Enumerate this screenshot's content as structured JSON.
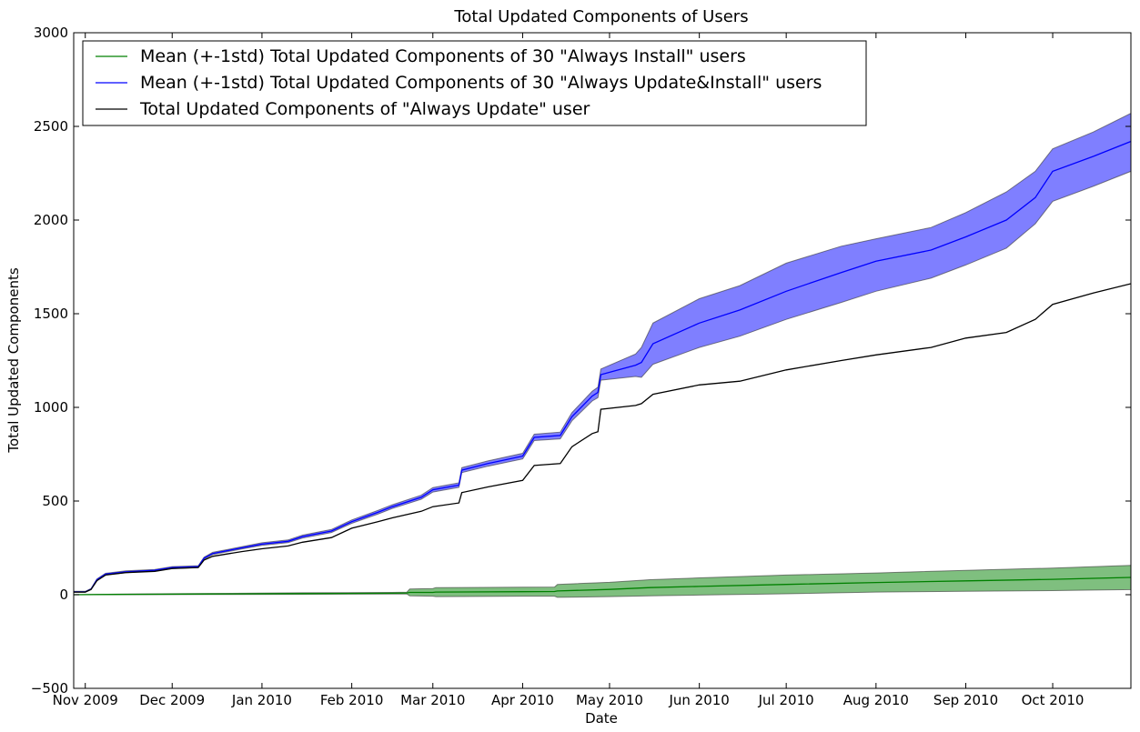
{
  "chart_data": {
    "type": "line",
    "title": "Total Updated Components of Users",
    "xlabel": "Date",
    "ylabel": "Total Updated Components",
    "xlim": [
      "2009-10-28",
      "2010-10-28"
    ],
    "ylim": [
      -500,
      3000
    ],
    "grid": false,
    "legend_position": "top-left",
    "x_ticks": [
      {
        "date": "2009-11-01",
        "label": "Nov 2009"
      },
      {
        "date": "2009-12-01",
        "label": "Dec 2009"
      },
      {
        "date": "2010-01-01",
        "label": "Jan 2010"
      },
      {
        "date": "2010-02-01",
        "label": "Feb 2010"
      },
      {
        "date": "2010-03-01",
        "label": "Mar 2010"
      },
      {
        "date": "2010-04-01",
        "label": "Apr 2010"
      },
      {
        "date": "2010-05-01",
        "label": "May 2010"
      },
      {
        "date": "2010-06-01",
        "label": "Jun 2010"
      },
      {
        "date": "2010-07-01",
        "label": "Jul 2010"
      },
      {
        "date": "2010-08-01",
        "label": "Aug 2010"
      },
      {
        "date": "2010-09-01",
        "label": "Sep 2010"
      },
      {
        "date": "2010-10-01",
        "label": "Oct 2010"
      }
    ],
    "y_ticks": [
      {
        "value": -500,
        "label": "−500"
      },
      {
        "value": 0,
        "label": "0"
      },
      {
        "value": 500,
        "label": "500"
      },
      {
        "value": 1000,
        "label": "1000"
      },
      {
        "value": 1500,
        "label": "1500"
      },
      {
        "value": 2000,
        "label": "2000"
      },
      {
        "value": 2500,
        "label": "2500"
      },
      {
        "value": 3000,
        "label": "3000"
      }
    ],
    "series": [
      {
        "name": "Mean (+-1std) Total Updated Components of 30 \"Always Install\" users",
        "color": "#008000",
        "band_color": "#008000",
        "band_opacity": 0.5,
        "points": [
          [
            "2009-10-28",
            0,
            0,
            0
          ],
          [
            "2009-11-15",
            2,
            0,
            4
          ],
          [
            "2009-12-15",
            4,
            1,
            7
          ],
          [
            "2010-01-15",
            6,
            2,
            10
          ],
          [
            "2010-02-15",
            8,
            4,
            12
          ],
          [
            "2010-02-20",
            9,
            4,
            13
          ],
          [
            "2010-02-21",
            12,
            -6,
            30
          ],
          [
            "2010-03-01",
            12,
            -8,
            33
          ],
          [
            "2010-03-02",
            14,
            -10,
            38
          ],
          [
            "2010-04-01",
            16,
            -8,
            40
          ],
          [
            "2010-04-12",
            17,
            -8,
            41
          ],
          [
            "2010-04-13",
            20,
            -14,
            55
          ],
          [
            "2010-05-01",
            28,
            -10,
            66
          ],
          [
            "2010-05-15",
            38,
            -6,
            80
          ],
          [
            "2010-06-01",
            44,
            -2,
            90
          ],
          [
            "2010-07-01",
            55,
            5,
            105
          ],
          [
            "2010-08-01",
            65,
            14,
            116
          ],
          [
            "2010-09-01",
            74,
            18,
            130
          ],
          [
            "2010-10-01",
            82,
            22,
            142
          ],
          [
            "2010-10-28",
            92,
            27,
            157
          ]
        ]
      },
      {
        "name": "Mean (+-1std) Total Updated Components of 30 \"Always Update&Install\" users",
        "color": "#0000ff",
        "band_color": "#0000ff",
        "band_opacity": 0.5,
        "points": [
          [
            "2009-10-28",
            15,
            12,
            18
          ],
          [
            "2009-11-01",
            15,
            12,
            18
          ],
          [
            "2009-11-03",
            30,
            27,
            33
          ],
          [
            "2009-11-05",
            80,
            77,
            84
          ],
          [
            "2009-11-08",
            110,
            106,
            114
          ],
          [
            "2009-11-15",
            122,
            118,
            127
          ],
          [
            "2009-11-25",
            130,
            126,
            135
          ],
          [
            "2009-12-01",
            145,
            140,
            150
          ],
          [
            "2009-12-10",
            150,
            145,
            155
          ],
          [
            "2009-12-12",
            195,
            190,
            200
          ],
          [
            "2009-12-15",
            220,
            214,
            226
          ],
          [
            "2009-12-25",
            250,
            244,
            256
          ],
          [
            "2010-01-01",
            270,
            263,
            277
          ],
          [
            "2010-01-10",
            285,
            278,
            292
          ],
          [
            "2010-01-15",
            310,
            302,
            318
          ],
          [
            "2010-01-25",
            340,
            332,
            348
          ],
          [
            "2010-02-01",
            390,
            381,
            399
          ],
          [
            "2010-02-10",
            440,
            430,
            450
          ],
          [
            "2010-02-15",
            470,
            460,
            480
          ],
          [
            "2010-02-25",
            520,
            509,
            531
          ],
          [
            "2010-03-01",
            560,
            548,
            572
          ],
          [
            "2010-03-10",
            585,
            573,
            597
          ],
          [
            "2010-03-11",
            665,
            652,
            678
          ],
          [
            "2010-03-20",
            700,
            686,
            714
          ],
          [
            "2010-04-01",
            740,
            725,
            755
          ],
          [
            "2010-04-05",
            840,
            823,
            857
          ],
          [
            "2010-04-14",
            850,
            832,
            868
          ],
          [
            "2010-04-18",
            950,
            928,
            972
          ],
          [
            "2010-04-25",
            1060,
            1034,
            1086
          ],
          [
            "2010-04-27",
            1080,
            1052,
            1108
          ],
          [
            "2010-04-28",
            1175,
            1145,
            1205
          ],
          [
            "2010-05-10",
            1225,
            1165,
            1285
          ],
          [
            "2010-05-12",
            1240,
            1160,
            1320
          ],
          [
            "2010-05-16",
            1340,
            1230,
            1450
          ],
          [
            "2010-06-01",
            1450,
            1320,
            1580
          ],
          [
            "2010-06-15",
            1520,
            1380,
            1650
          ],
          [
            "2010-07-01",
            1620,
            1470,
            1770
          ],
          [
            "2010-07-20",
            1720,
            1560,
            1860
          ],
          [
            "2010-08-01",
            1780,
            1620,
            1900
          ],
          [
            "2010-08-20",
            1840,
            1690,
            1960
          ],
          [
            "2010-09-01",
            1910,
            1760,
            2040
          ],
          [
            "2010-09-15",
            2000,
            1850,
            2150
          ],
          [
            "2010-09-25",
            2120,
            1980,
            2260
          ],
          [
            "2010-10-01",
            2260,
            2100,
            2380
          ],
          [
            "2010-10-15",
            2340,
            2180,
            2470
          ],
          [
            "2010-10-28",
            2420,
            2260,
            2570
          ]
        ]
      },
      {
        "name": "Total Updated Components of \"Always Update\" user",
        "color": "#000000",
        "points": [
          [
            "2009-10-28",
            14
          ],
          [
            "2009-11-01",
            14
          ],
          [
            "2009-11-03",
            28
          ],
          [
            "2009-11-05",
            75
          ],
          [
            "2009-11-08",
            105
          ],
          [
            "2009-11-15",
            118
          ],
          [
            "2009-11-25",
            125
          ],
          [
            "2009-12-01",
            140
          ],
          [
            "2009-12-10",
            145
          ],
          [
            "2009-12-12",
            185
          ],
          [
            "2009-12-15",
            205
          ],
          [
            "2009-12-25",
            230
          ],
          [
            "2010-01-01",
            245
          ],
          [
            "2010-01-10",
            260
          ],
          [
            "2010-01-15",
            280
          ],
          [
            "2010-01-25",
            305
          ],
          [
            "2010-02-01",
            355
          ],
          [
            "2010-02-10",
            390
          ],
          [
            "2010-02-15",
            410
          ],
          [
            "2010-02-25",
            445
          ],
          [
            "2010-03-01",
            470
          ],
          [
            "2010-03-10",
            490
          ],
          [
            "2010-03-11",
            545
          ],
          [
            "2010-03-20",
            575
          ],
          [
            "2010-04-01",
            610
          ],
          [
            "2010-04-05",
            690
          ],
          [
            "2010-04-14",
            700
          ],
          [
            "2010-04-18",
            790
          ],
          [
            "2010-04-25",
            860
          ],
          [
            "2010-04-27",
            870
          ],
          [
            "2010-04-28",
            990
          ],
          [
            "2010-05-10",
            1010
          ],
          [
            "2010-05-12",
            1020
          ],
          [
            "2010-05-16",
            1070
          ],
          [
            "2010-06-01",
            1120
          ],
          [
            "2010-06-15",
            1140
          ],
          [
            "2010-07-01",
            1200
          ],
          [
            "2010-07-20",
            1250
          ],
          [
            "2010-08-01",
            1280
          ],
          [
            "2010-08-20",
            1320
          ],
          [
            "2010-09-01",
            1370
          ],
          [
            "2010-09-15",
            1400
          ],
          [
            "2010-09-25",
            1470
          ],
          [
            "2010-10-01",
            1550
          ],
          [
            "2010-10-15",
            1610
          ],
          [
            "2010-10-28",
            1660
          ]
        ]
      }
    ]
  }
}
